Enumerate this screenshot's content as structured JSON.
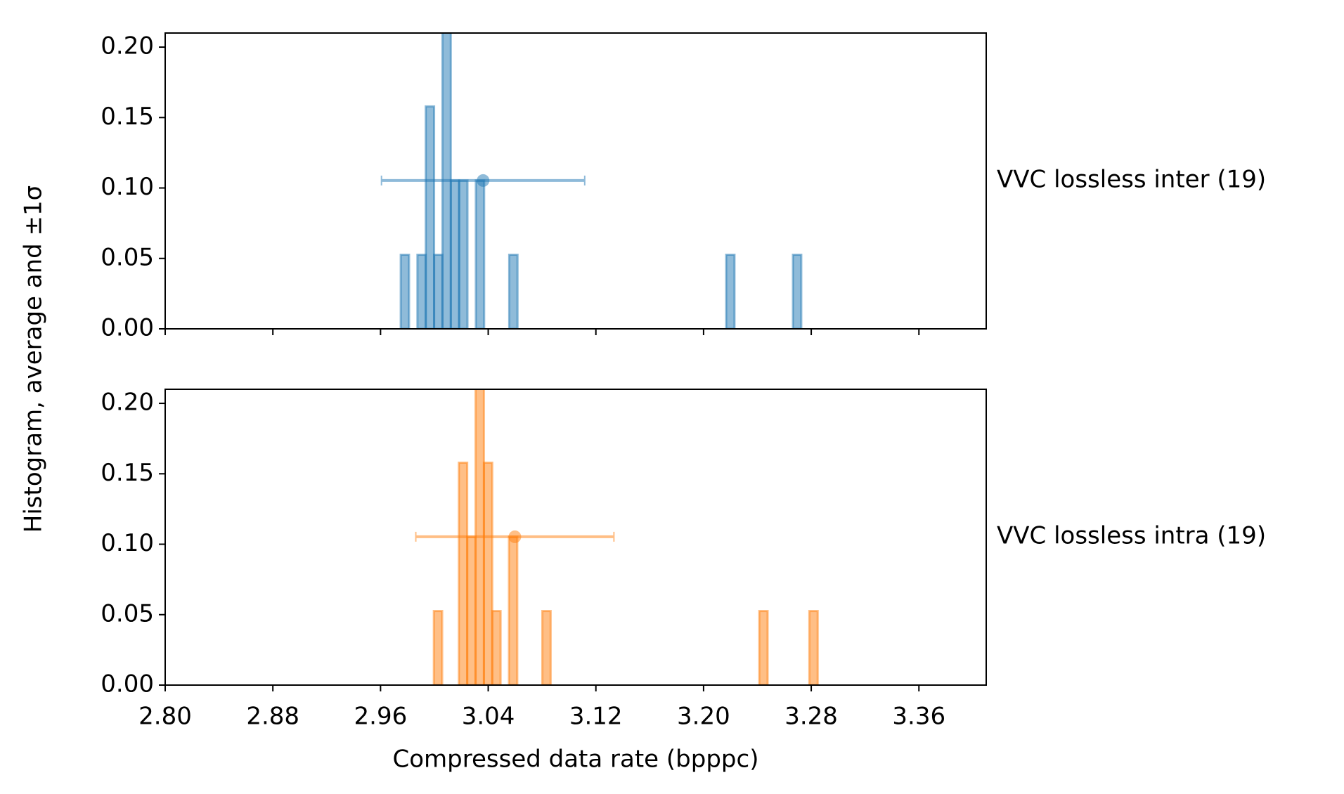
{
  "chart_data": [
    {
      "type": "histogram",
      "label": "VVC lossless inter (19)",
      "ylabel": "Histogram, average and ±1σ",
      "color": "#1f77b4",
      "bins": [
        2.975,
        2.9812,
        2.9874,
        2.9936,
        2.9998,
        3.006,
        3.0122,
        3.0184,
        3.0246,
        3.0308,
        3.037,
        3.0432,
        3.0494,
        3.0556,
        3.0618,
        3.068,
        3.0742,
        3.0804,
        3.0866,
        3.0928,
        3.099,
        3.1052,
        3.1114,
        3.1176,
        3.1238,
        3.13,
        3.1362,
        3.1424,
        3.1486,
        3.1548,
        3.161,
        3.1672,
        3.1734,
        3.1796,
        3.1858,
        3.192,
        3.1982,
        3.2044,
        3.2106,
        3.2168,
        3.223,
        3.2292,
        3.2354,
        3.2416,
        3.2478,
        3.254,
        3.2602,
        3.2664,
        3.2726
      ],
      "counts": [
        0.0526,
        0,
        0.0526,
        0.1579,
        0.0526,
        0.2105,
        0.1053,
        0.1053,
        0,
        0.1053,
        0,
        0,
        0,
        0.0526,
        0,
        0,
        0,
        0,
        0,
        0,
        0,
        0,
        0,
        0,
        0,
        0,
        0,
        0,
        0,
        0,
        0,
        0,
        0,
        0,
        0,
        0,
        0,
        0,
        0,
        0.0526,
        0,
        0,
        0,
        0,
        0,
        0,
        0,
        0.0526
      ],
      "mean": 3.0362,
      "mean_y": 0.1053,
      "std": 0.0755,
      "xlim": [
        2.8,
        3.41
      ],
      "ylim": [
        0,
        0.21
      ],
      "yticks": [
        {
          "value": 0,
          "label": "0.00"
        },
        {
          "value": 0.05,
          "label": "0.05"
        },
        {
          "value": 0.1,
          "label": "0.10"
        },
        {
          "value": 0.15,
          "label": "0.15"
        },
        {
          "value": 0.2,
          "label": "0.20"
        }
      ]
    },
    {
      "type": "histogram",
      "label": "VVC lossless intra (19)",
      "xlabel": "Compressed data rate (bpppc)",
      "color": "#ff7f0e",
      "bins": [
        2.981,
        2.9872,
        2.9934,
        2.9996,
        3.0058,
        3.012,
        3.0182,
        3.0244,
        3.0306,
        3.0368,
        3.043,
        3.0492,
        3.0554,
        3.0616,
        3.0678,
        3.074,
        3.0802,
        3.0864,
        3.0926,
        3.0988,
        3.105,
        3.1112,
        3.1174,
        3.1236,
        3.1298,
        3.136,
        3.1422,
        3.1484,
        3.1546,
        3.1608,
        3.167,
        3.1732,
        3.1794,
        3.1856,
        3.1918,
        3.198,
        3.2042,
        3.2104,
        3.2166,
        3.2228,
        3.229,
        3.2352,
        3.2414,
        3.2476,
        3.2538,
        3.26,
        3.2662,
        3.2724,
        3.2786,
        3.2848
      ],
      "counts": [
        0,
        0,
        0,
        0.0526,
        0,
        0,
        0.1579,
        0.1053,
        0.2105,
        0.1579,
        0.0526,
        0,
        0.1053,
        0,
        0,
        0,
        0.0526,
        0,
        0,
        0,
        0,
        0,
        0,
        0,
        0,
        0,
        0,
        0,
        0,
        0,
        0,
        0,
        0,
        0,
        0,
        0,
        0,
        0,
        0,
        0,
        0,
        0,
        0.0526,
        0,
        0,
        0,
        0,
        0,
        0.0526
      ],
      "mean": 3.0598,
      "mean_y": 0.1053,
      "std": 0.0736,
      "xlim": [
        2.8,
        3.41
      ],
      "ylim": [
        0,
        0.21
      ],
      "xticks": [
        {
          "value": 2.8,
          "label": "2.80"
        },
        {
          "value": 2.88,
          "label": "2.88"
        },
        {
          "value": 2.96,
          "label": "2.96"
        },
        {
          "value": 3.04,
          "label": "3.04"
        },
        {
          "value": 3.12,
          "label": "3.12"
        },
        {
          "value": 3.2,
          "label": "3.20"
        },
        {
          "value": 3.28,
          "label": "3.28"
        },
        {
          "value": 3.36,
          "label": "3.36"
        }
      ],
      "yticks": [
        {
          "value": 0,
          "label": "0.00"
        },
        {
          "value": 0.05,
          "label": "0.05"
        },
        {
          "value": 0.1,
          "label": "0.10"
        },
        {
          "value": 0.15,
          "label": "0.15"
        },
        {
          "value": 0.2,
          "label": "0.20"
        }
      ]
    }
  ]
}
